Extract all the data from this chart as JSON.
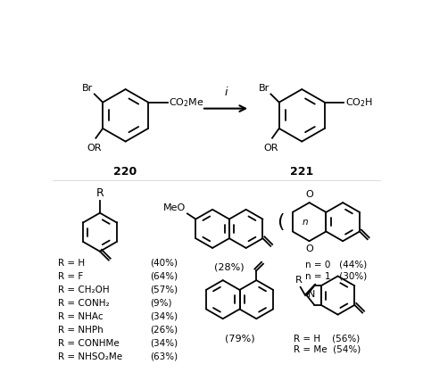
{
  "bg": "#ffffff",
  "figsize": [
    4.74,
    4.36
  ],
  "dpi": 100,
  "lw": 1.3,
  "r_groups": [
    [
      "R = H",
      "(40%)"
    ],
    [
      "R = F",
      "(64%)"
    ],
    [
      "R = CH₂OH",
      "(57%)"
    ],
    [
      "R = CONH₂",
      "(9%)"
    ],
    [
      "R = NHAc",
      "(34%)"
    ],
    [
      "R = NHPh",
      "(26%)"
    ],
    [
      "R = CONHMe",
      "(34%)"
    ],
    [
      "R = NHSO₂Me",
      "(63%)"
    ]
  ]
}
